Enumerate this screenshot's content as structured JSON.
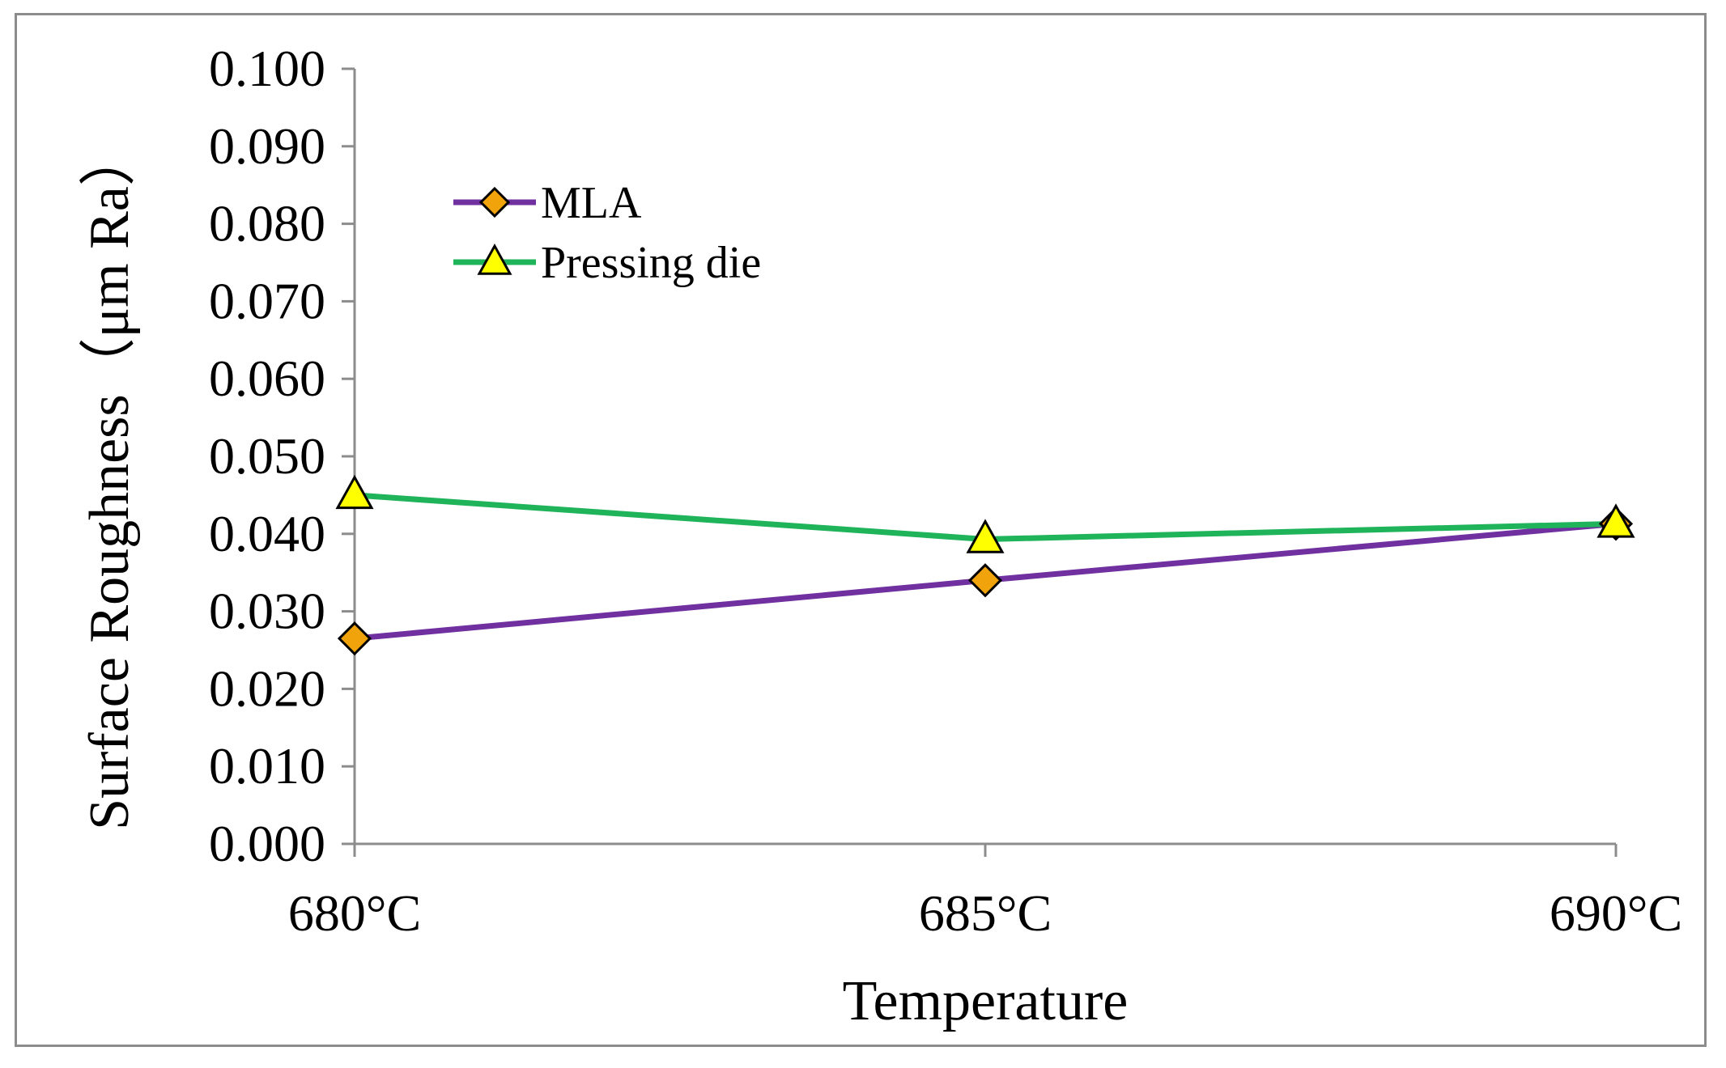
{
  "chart_data": {
    "type": "line",
    "title": "",
    "xlabel": "Temperature",
    "ylabel": "Surface Roughness（μm Ra）",
    "categories": [
      "680°C",
      "685°C",
      "690°C"
    ],
    "ylim": [
      0,
      0.1
    ],
    "ytick_step": 0.01,
    "ytick_labels": [
      "0.000",
      "0.010",
      "0.020",
      "0.030",
      "0.040",
      "0.050",
      "0.060",
      "0.070",
      "0.080",
      "0.090",
      "0.100"
    ],
    "grid": false,
    "legend_position": "top-left",
    "series": [
      {
        "name": "MLA",
        "values": [
          0.0265,
          0.034,
          0.0413
        ],
        "color": "#7030a0",
        "marker": "diamond",
        "marker_color": "#f0a30a"
      },
      {
        "name": "Pressing die",
        "values": [
          0.045,
          0.0393,
          0.0413
        ],
        "color": "#1fb35a",
        "marker": "triangle",
        "marker_color": "#ffff00"
      }
    ]
  }
}
